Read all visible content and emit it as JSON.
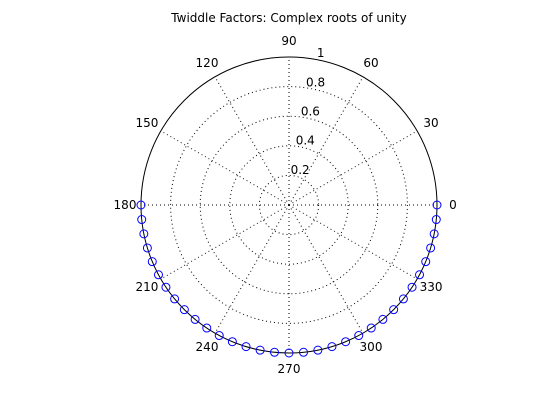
{
  "chart_data": {
    "type": "scatter",
    "projection": "polar",
    "title": "Twiddle Factors: Complex roots of unity",
    "radial_ticks": [
      "0.2",
      "0.4",
      "0.6",
      "0.8",
      "1"
    ],
    "radial_tick_values": [
      0.2,
      0.4,
      0.6,
      0.8,
      1
    ],
    "rlim": [
      0,
      1
    ],
    "angular_ticks": [
      "0",
      "30",
      "60",
      "90",
      "120",
      "150",
      "180",
      "210",
      "240",
      "270",
      "300",
      "330"
    ],
    "angular_tick_values": [
      0,
      30,
      60,
      90,
      120,
      150,
      180,
      210,
      240,
      270,
      300,
      330
    ],
    "grid": true,
    "grid_style": "dotted",
    "marker": "circle",
    "marker_color": "#0000ff",
    "series": [
      {
        "theta_deg": [
          0,
          5.625,
          11.25,
          16.875,
          22.5,
          28.125,
          33.75,
          39.375,
          45,
          50.625,
          56.25,
          61.875,
          67.5,
          73.125,
          78.75,
          84.375,
          90,
          95.625,
          101.25,
          106.875,
          112.5,
          118.125,
          123.75,
          129.375,
          135,
          140.625,
          146.25,
          151.875,
          157.5,
          163.125,
          168.75,
          174.375,
          180
        ],
        "theta_direction": "clockwise",
        "r": [
          1,
          1,
          1,
          1,
          1,
          1,
          1,
          1,
          1,
          1,
          1,
          1,
          1,
          1,
          1,
          1,
          1,
          1,
          1,
          1,
          1,
          1,
          1,
          1,
          1,
          1,
          1,
          1,
          1,
          1,
          1,
          1,
          1
        ]
      }
    ]
  }
}
